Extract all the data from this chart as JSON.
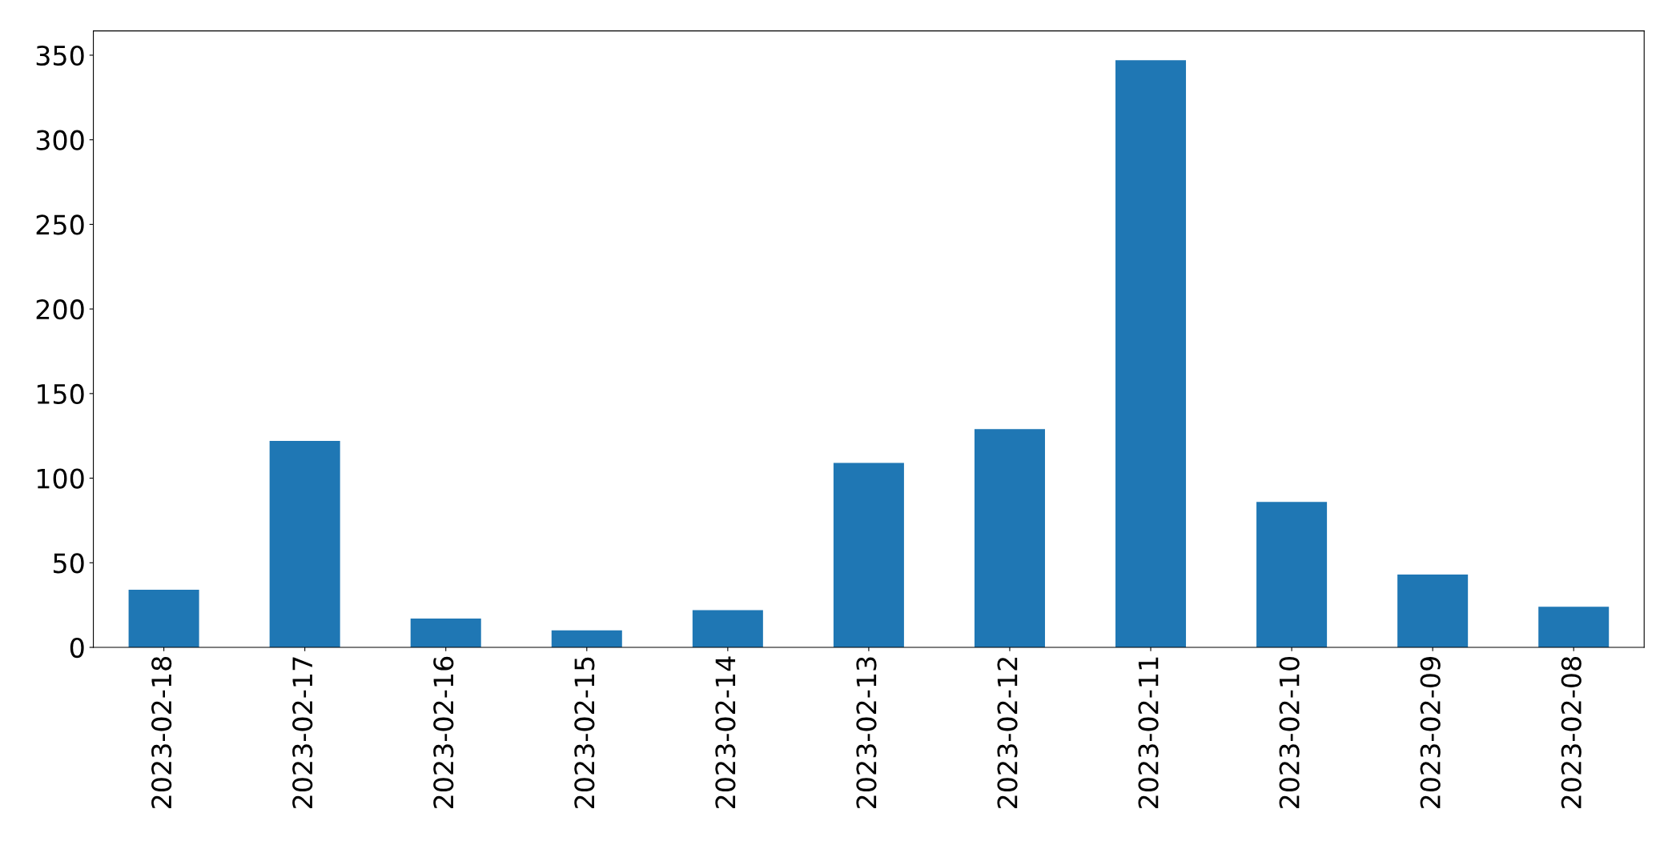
{
  "chart_data": {
    "type": "bar",
    "categories": [
      "2023-02-18",
      "2023-02-17",
      "2023-02-16",
      "2023-02-15",
      "2023-02-14",
      "2023-02-13",
      "2023-02-12",
      "2023-02-11",
      "2023-02-10",
      "2023-02-09",
      "2023-02-08"
    ],
    "values": [
      34,
      122,
      17,
      10,
      22,
      109,
      129,
      347,
      86,
      43,
      24
    ],
    "color": "#1f77b4",
    "ylim": [
      0,
      364.35
    ],
    "yticks": [
      0,
      50,
      100,
      150,
      200,
      250,
      300,
      350
    ]
  }
}
